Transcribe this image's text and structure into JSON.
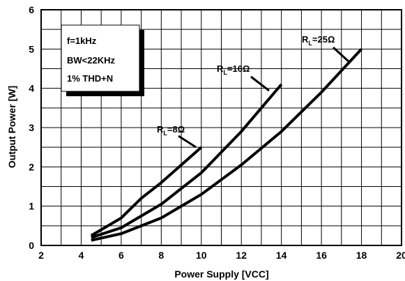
{
  "chart_data": {
    "type": "line",
    "xlabel": "Power Supply [VCC]",
    "ylabel": "Output Power [W]",
    "xlim": [
      2,
      20
    ],
    "ylim": [
      0,
      6
    ],
    "x_ticks": [
      "2",
      "4",
      "6",
      "8",
      "10",
      "12",
      "14",
      "16",
      "18",
      "20"
    ],
    "y_ticks": [
      "0",
      "1",
      "2",
      "3",
      "4",
      "5",
      "6"
    ],
    "grid": true,
    "conditions": [
      "f=1kHz",
      "BW<22KHz",
      "1% THD+N"
    ],
    "series": [
      {
        "name": "RL=8Ω",
        "label_main": "R",
        "label_sub": "L",
        "label_value": "=8Ω",
        "x": [
          4.5,
          5,
          6,
          7,
          8,
          9,
          10
        ],
        "y": [
          0.25,
          0.4,
          0.7,
          1.2,
          1.6,
          2.05,
          2.5
        ]
      },
      {
        "name": "RL=16Ω",
        "label_main": "R",
        "label_sub": "L",
        "label_value": "=16Ω",
        "x": [
          4.5,
          6,
          8,
          10,
          12,
          14
        ],
        "y": [
          0.2,
          0.45,
          1.05,
          1.85,
          2.9,
          4.1
        ]
      },
      {
        "name": "RL=25Ω",
        "label_main": "R",
        "label_sub": "L",
        "label_value": "=25Ω",
        "x": [
          4.5,
          6,
          8,
          10,
          12,
          14,
          16,
          18
        ],
        "y": [
          0.13,
          0.3,
          0.7,
          1.3,
          2.05,
          2.9,
          3.9,
          5.0
        ]
      }
    ]
  }
}
